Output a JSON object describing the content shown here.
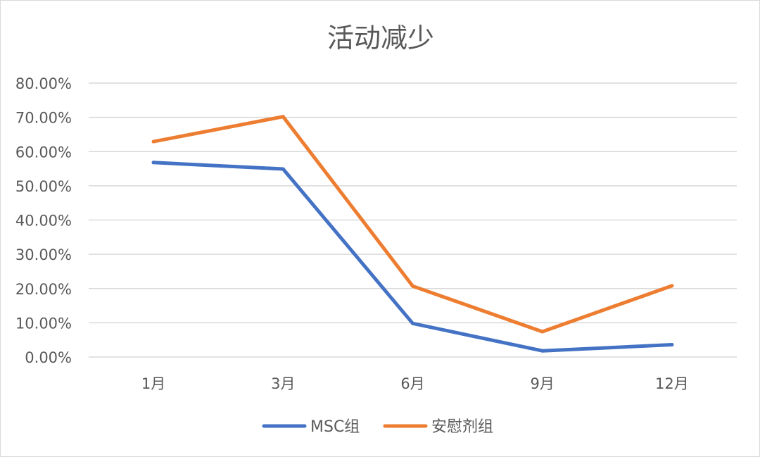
{
  "chart_data": {
    "type": "line",
    "title": "活动减少",
    "categories": [
      "1月",
      "3月",
      "6月",
      "9月",
      "12月"
    ],
    "ylim": [
      0,
      80
    ],
    "ytick_values": [
      0,
      10,
      20,
      30,
      40,
      50,
      60,
      70,
      80
    ],
    "ytick_labels": [
      "0.00%",
      "10.00%",
      "20.00%",
      "30.00%",
      "40.00%",
      "50.00%",
      "60.00%",
      "70.00%",
      "80.00%"
    ],
    "grid": true,
    "legend_position": "bottom",
    "series": [
      {
        "name": "MSC组",
        "color": "#4472C4",
        "values": [
          56.8,
          54.9,
          9.8,
          1.8,
          3.6
        ]
      },
      {
        "name": "安慰剂组",
        "color": "#ED7D31",
        "values": [
          62.9,
          70.2,
          20.7,
          7.4,
          20.8
        ]
      }
    ]
  }
}
